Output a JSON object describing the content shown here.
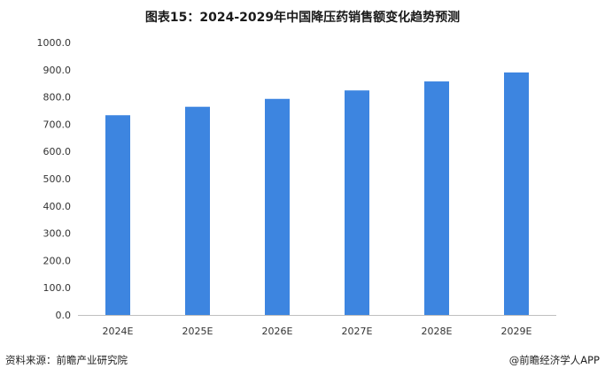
{
  "chart_data": {
    "type": "bar",
    "title": "图表15：2024-2029年中国降压药销售额变化趋势预测",
    "categories": [
      "2024E",
      "2025E",
      "2026E",
      "2027E",
      "2028E",
      "2029E"
    ],
    "series": [
      {
        "values": [
          733,
          764,
          793,
          824,
          857,
          890
        ],
        "color": "#3d85e0"
      }
    ],
    "yticks": [
      "0.0",
      "100.0",
      "200.0",
      "300.0",
      "400.0",
      "500.0",
      "600.0",
      "700.0",
      "800.0",
      "900.0",
      "1000.0"
    ],
    "ylim": [
      0,
      1000
    ],
    "grid": false,
    "legend": "none"
  },
  "footer": {
    "source": "资料来源：前瞻产业研究院",
    "brand": "@前瞻经济学人APP"
  }
}
